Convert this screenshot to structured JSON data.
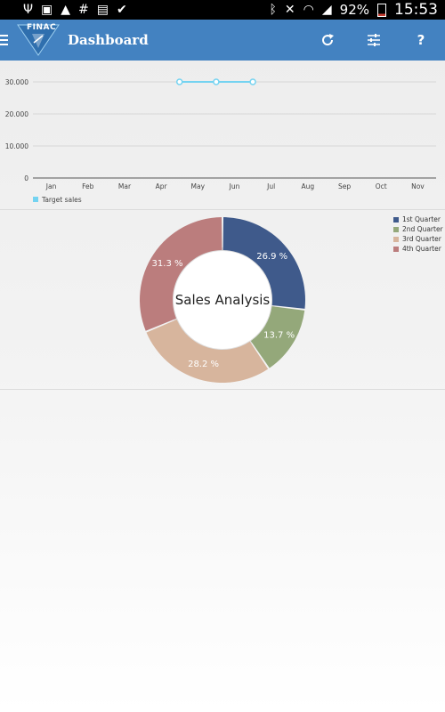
{
  "status_bar": {
    "battery": "92%",
    "time": "15:53"
  },
  "app_bar": {
    "logo_text": "FINAC",
    "title": "Dashboard",
    "help_label": "?"
  },
  "colors": {
    "app_bar": "#4382c1",
    "target_sales": "#74d3f1",
    "q1": "#3f5a8b",
    "q2": "#94a87a",
    "q3": "#d7b59d",
    "q4": "#bb7d7d"
  },
  "chart_data": [
    {
      "type": "line",
      "categories": [
        "Jan",
        "Feb",
        "Mar",
        "Apr",
        "May",
        "Jun",
        "Jul",
        "Aug",
        "Sep",
        "Oct",
        "Nov"
      ],
      "y_tick_labels": [
        "0",
        "10.000",
        "20.000",
        "30.000"
      ],
      "ylim": [
        0,
        30000
      ],
      "grid": true,
      "legend_position": "bottom-left",
      "series": [
        {
          "name": "Target sales",
          "points": [
            {
              "x": "Apr/May",
              "y": 30000
            },
            {
              "x": "May/Jun",
              "y": 30000
            },
            {
              "x": "Jun/Jul",
              "y": 30000
            }
          ]
        }
      ]
    },
    {
      "type": "pie",
      "center_title": "Sales Analysis",
      "legend_position": "top-right",
      "slices": [
        {
          "label": "1st Quarter",
          "value": 26.9,
          "text": "26.9 %",
          "color": "#3f5a8b"
        },
        {
          "label": "2nd Quarter",
          "value": 13.7,
          "text": "13.7 %",
          "color": "#94a87a"
        },
        {
          "label": "3rd Quarter",
          "value": 28.2,
          "text": "28.2 %",
          "color": "#d7b59d"
        },
        {
          "label": "4th Quarter",
          "value": 31.3,
          "text": "31.3 %",
          "color": "#bb7d7d"
        }
      ]
    }
  ]
}
